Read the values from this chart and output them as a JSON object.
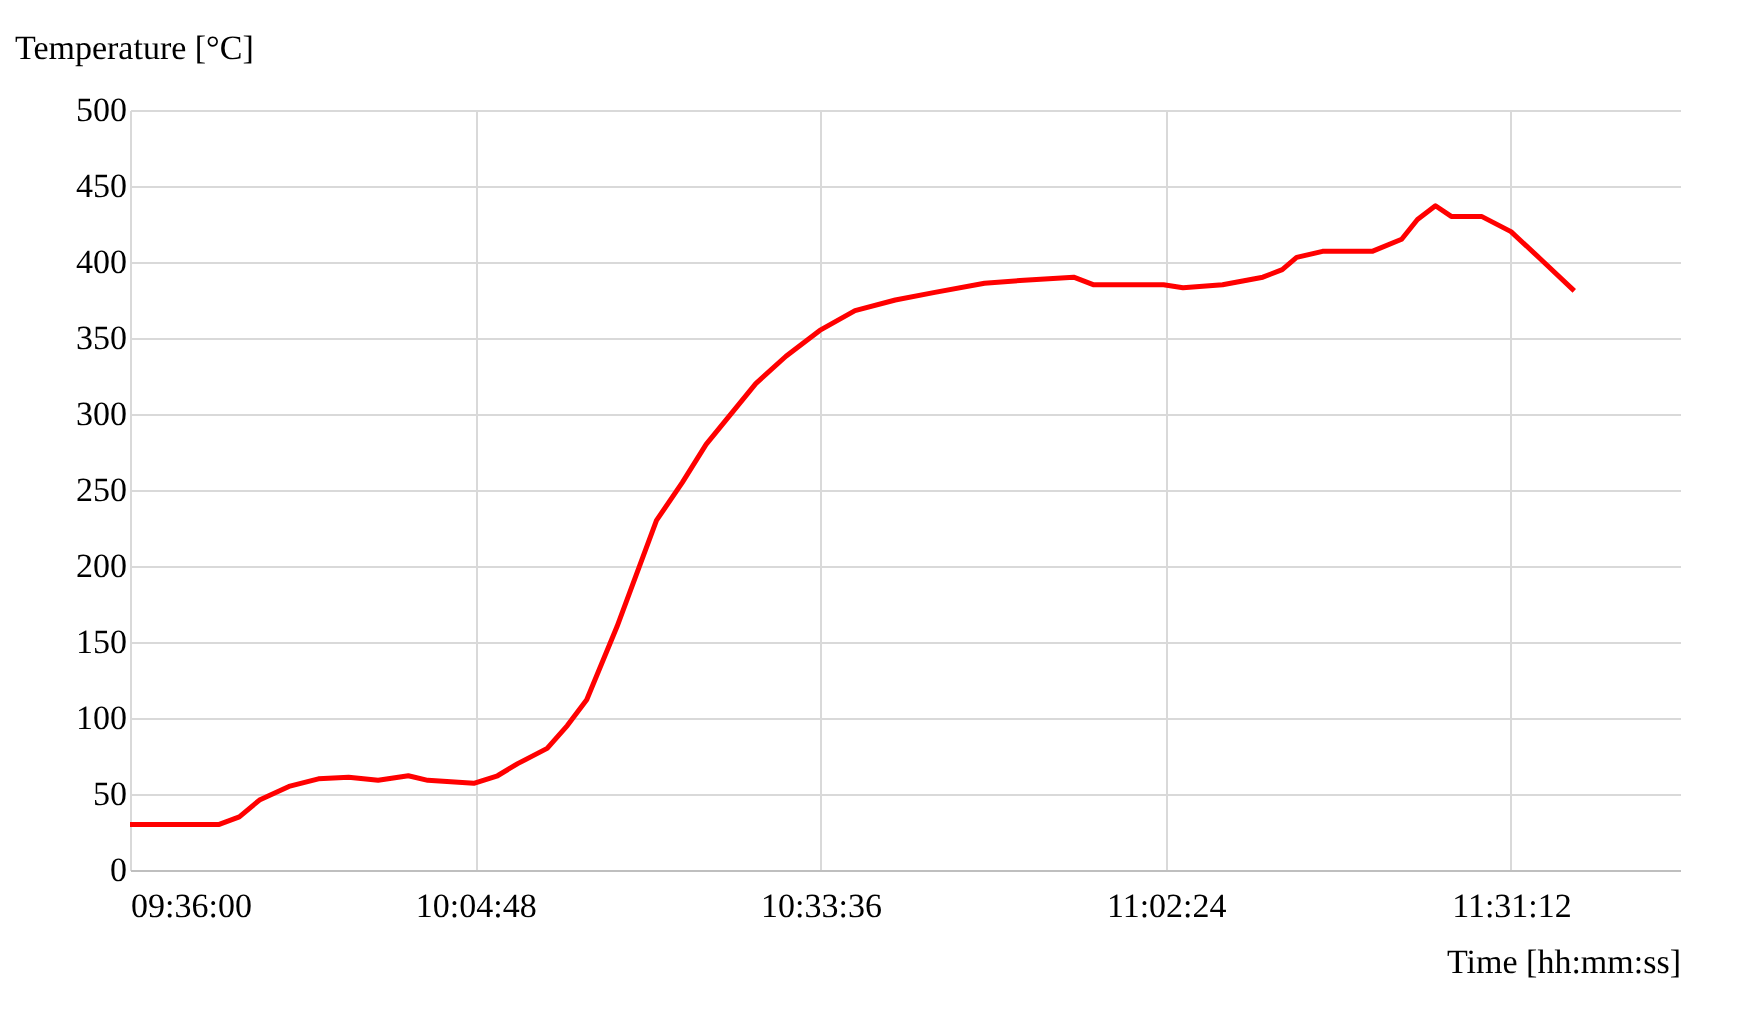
{
  "chart_data": {
    "type": "line",
    "ylabel": "Temperature [°C]",
    "xlabel": "Time [hh:mm:ss]",
    "x": [
      9.6,
      9.724,
      9.752,
      9.78,
      9.821,
      9.862,
      9.904,
      9.945,
      9.987,
      10.014,
      10.078,
      10.111,
      10.139,
      10.18,
      10.208,
      10.235,
      10.277,
      10.332,
      10.368,
      10.401,
      10.47,
      10.512,
      10.559,
      10.608,
      10.664,
      10.719,
      10.788,
      10.843,
      10.912,
      10.94,
      11.037,
      11.064,
      11.119,
      11.175,
      11.202,
      11.222,
      11.258,
      11.327,
      11.368,
      11.39,
      11.415,
      11.437,
      11.479,
      11.52,
      11.561,
      11.608
    ],
    "series": [
      {
        "color": "#ff0000",
        "values": [
          30,
          30,
          35,
          46,
          55,
          60,
          61,
          59,
          62,
          59,
          57,
          62,
          70,
          80,
          95,
          112,
          160,
          230,
          255,
          280,
          320,
          338,
          355,
          368,
          375,
          380,
          386,
          388,
          390,
          385,
          385,
          383,
          385,
          390,
          395,
          403,
          407,
          407,
          415,
          428,
          437,
          430,
          430,
          420,
          402,
          381
        ]
      }
    ],
    "xlim": [
      9.6,
      11.755
    ],
    "xticks": [
      {
        "value": 9.6,
        "label": "09:36:00"
      },
      {
        "value": 10.08,
        "label": "10:04:48"
      },
      {
        "value": 10.56,
        "label": "10:33:36"
      },
      {
        "value": 11.04,
        "label": "11:02:24"
      },
      {
        "value": 11.52,
        "label": "11:31:12"
      }
    ],
    "ylim": [
      0,
      500
    ],
    "yticks": [
      0,
      50,
      100,
      150,
      200,
      250,
      300,
      350,
      400,
      450,
      500
    ],
    "grid": true,
    "legend": false,
    "marker": "none",
    "line_style": "solid"
  }
}
